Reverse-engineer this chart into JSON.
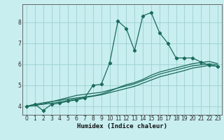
{
  "xlabel": "Humidex (Indice chaleur)",
  "bg_color": "#c8eef0",
  "grid_color": "#9ecfcf",
  "line_color": "#1a6b5a",
  "xlim": [
    -0.5,
    23.5
  ],
  "ylim": [
    3.6,
    8.85
  ],
  "xticks": [
    0,
    1,
    2,
    3,
    4,
    5,
    6,
    7,
    8,
    9,
    10,
    11,
    12,
    13,
    14,
    15,
    16,
    17,
    18,
    19,
    20,
    21,
    22,
    23
  ],
  "yticks": [
    4,
    5,
    6,
    7,
    8
  ],
  "curve1_x": [
    0,
    1,
    2,
    3,
    4,
    5,
    6,
    7,
    8,
    9,
    10,
    11,
    12,
    13,
    14,
    15,
    16,
    17,
    18,
    19,
    20,
    21,
    22,
    23
  ],
  "curve1_y": [
    4.0,
    4.1,
    3.8,
    4.1,
    4.15,
    4.25,
    4.3,
    4.4,
    5.0,
    5.05,
    6.05,
    8.05,
    7.7,
    6.65,
    8.3,
    8.45,
    7.5,
    7.0,
    6.3,
    6.3,
    6.3,
    6.1,
    5.95,
    5.9
  ],
  "curve2_x": [
    0,
    1,
    2,
    3,
    4,
    5,
    6,
    7,
    8,
    9,
    10,
    11,
    12,
    13,
    14,
    15,
    16,
    17,
    18,
    19,
    20,
    21,
    22,
    23
  ],
  "curve2_y": [
    4.0,
    4.05,
    4.1,
    4.15,
    4.2,
    4.28,
    4.35,
    4.42,
    4.48,
    4.55,
    4.65,
    4.75,
    4.85,
    4.95,
    5.1,
    5.25,
    5.4,
    5.5,
    5.6,
    5.7,
    5.82,
    5.88,
    5.95,
    5.9
  ],
  "curve3_x": [
    0,
    1,
    2,
    3,
    4,
    5,
    6,
    7,
    8,
    9,
    10,
    11,
    12,
    13,
    14,
    15,
    16,
    17,
    18,
    19,
    20,
    21,
    22,
    23
  ],
  "curve3_y": [
    4.0,
    4.05,
    4.12,
    4.22,
    4.32,
    4.42,
    4.52,
    4.57,
    4.62,
    4.67,
    4.77,
    4.87,
    4.97,
    5.07,
    5.22,
    5.38,
    5.53,
    5.63,
    5.73,
    5.83,
    5.93,
    5.97,
    6.02,
    5.97
  ],
  "curve4_x": [
    0,
    1,
    2,
    3,
    4,
    5,
    6,
    7,
    8,
    9,
    10,
    11,
    12,
    13,
    14,
    15,
    16,
    17,
    18,
    19,
    20,
    21,
    22,
    23
  ],
  "curve4_y": [
    4.0,
    4.1,
    4.17,
    4.23,
    4.28,
    4.35,
    4.4,
    4.45,
    4.5,
    4.58,
    4.72,
    4.88,
    5.03,
    5.13,
    5.28,
    5.48,
    5.63,
    5.73,
    5.83,
    5.93,
    6.03,
    6.08,
    6.13,
    6.03
  ]
}
